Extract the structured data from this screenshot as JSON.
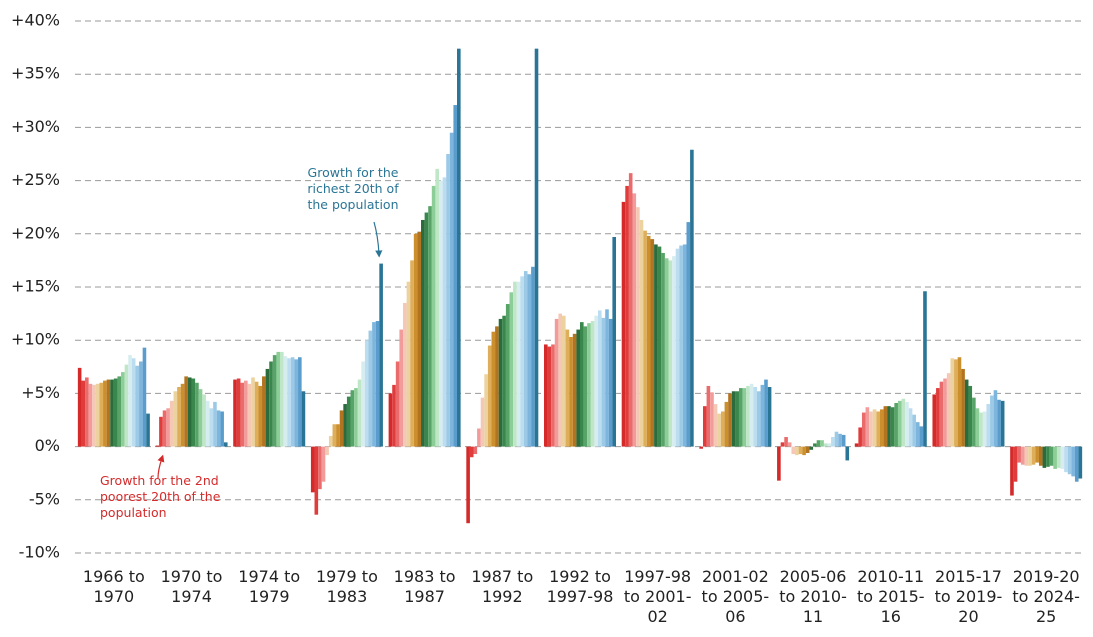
{
  "chart_data": {
    "type": "bar",
    "categories": [
      "1966 to 1970",
      "1970 to 1974",
      "1974 to 1979",
      "1979 to 1983",
      "1983 to 1987",
      "1987 to 1992",
      "1992 to 1997-98",
      "1997-98 to 2001-02",
      "2001-02 to 2005-06",
      "2005-06 to 2010-11",
      "2010-11 to 2015-16",
      "2015-17 to 2019-20",
      "2019-20 to 2024-25"
    ],
    "ylim": [
      -10,
      40
    ],
    "yticks": [
      {
        "value": -10,
        "label": "-10%"
      },
      {
        "value": -5,
        "label": "-5%"
      },
      {
        "value": 0,
        "label": "0%"
      },
      {
        "value": 5,
        "label": "+5%"
      },
      {
        "value": 10,
        "label": "+10%"
      },
      {
        "value": 15,
        "label": "+15%"
      },
      {
        "value": 20,
        "label": "+20%"
      },
      {
        "value": 25,
        "label": "+25%"
      },
      {
        "value": 30,
        "label": "+30%"
      },
      {
        "value": 35,
        "label": "+35%"
      },
      {
        "value": 40,
        "label": "+40%"
      }
    ],
    "grid": true,
    "annotations": [
      {
        "text": "Growth for the richest 20th of the population",
        "color": "#2a7595"
      },
      {
        "text": "Growth for the 2nd poorest 20th of the population",
        "color": "#d42a2a"
      }
    ],
    "series": [
      {
        "color": "#d42a2a",
        "values": [
          7.4,
          0.1,
          6.3,
          -4.3,
          5.0,
          -7.2,
          9.6,
          23.0,
          -0.2,
          -3.2,
          0.3,
          4.9,
          -4.6
        ]
      },
      {
        "color": "#e03c3c",
        "values": [
          6.2,
          2.8,
          6.4,
          -6.4,
          5.8,
          -1.0,
          9.4,
          24.5,
          3.8,
          0.4,
          1.8,
          5.5,
          -3.3
        ]
      },
      {
        "color": "#ea6b6b",
        "values": [
          6.5,
          3.4,
          6.0,
          -4.0,
          8.0,
          -0.7,
          9.6,
          25.7,
          5.7,
          0.9,
          3.2,
          6.1,
          -1.5
        ]
      },
      {
        "color": "#f29b9b",
        "values": [
          5.9,
          3.6,
          6.2,
          -3.3,
          11.0,
          1.7,
          12.0,
          23.8,
          5.1,
          0.4,
          3.7,
          6.4,
          -1.7
        ]
      },
      {
        "color": "#f5c8b6",
        "values": [
          5.8,
          4.3,
          5.9,
          -0.8,
          13.5,
          4.6,
          12.5,
          22.5,
          4.0,
          -0.7,
          3.3,
          6.9,
          -1.8
        ]
      },
      {
        "color": "#ecd29e",
        "values": [
          5.9,
          5.2,
          6.5,
          1.0,
          15.5,
          6.8,
          12.3,
          21.3,
          3.1,
          -0.8,
          3.5,
          8.3,
          -1.8
        ]
      },
      {
        "color": "#dfae5a",
        "values": [
          6.0,
          5.6,
          6.1,
          2.1,
          17.5,
          9.5,
          11.0,
          20.3,
          3.3,
          -0.7,
          3.3,
          8.2,
          -1.7
        ]
      },
      {
        "color": "#cc8f2e",
        "values": [
          6.2,
          5.9,
          5.7,
          2.1,
          20.0,
          10.8,
          10.3,
          19.8,
          4.2,
          -0.8,
          3.5,
          8.4,
          -1.5
        ]
      },
      {
        "color": "#b27420",
        "values": [
          6.3,
          6.6,
          6.6,
          3.4,
          20.2,
          11.3,
          10.6,
          19.5,
          5.0,
          -0.6,
          3.8,
          7.3,
          -1.8
        ]
      },
      {
        "color": "#2b6b3c",
        "values": [
          6.3,
          6.5,
          7.3,
          4.0,
          21.3,
          12.0,
          11.0,
          19.0,
          5.2,
          -0.3,
          3.8,
          6.3,
          -2.0
        ]
      },
      {
        "color": "#3a874e",
        "values": [
          6.4,
          6.4,
          8.0,
          4.7,
          22.0,
          12.3,
          11.7,
          18.8,
          5.2,
          0.3,
          3.7,
          5.7,
          -1.9
        ]
      },
      {
        "color": "#58a468",
        "values": [
          6.6,
          6.0,
          8.6,
          5.3,
          22.6,
          13.4,
          11.3,
          18.2,
          5.5,
          0.6,
          4.1,
          4.6,
          -1.8
        ]
      },
      {
        "color": "#8ccd98",
        "values": [
          7.0,
          5.4,
          8.9,
          5.5,
          24.5,
          14.5,
          11.6,
          17.7,
          5.5,
          0.6,
          4.3,
          3.6,
          -2.1
        ]
      },
      {
        "color": "#bfe6c7",
        "values": [
          7.7,
          4.9,
          8.9,
          6.3,
          26.1,
          15.5,
          11.8,
          17.5,
          5.7,
          0.3,
          4.5,
          3.2,
          -2.0
        ]
      },
      {
        "color": "#d6edf0",
        "values": [
          8.6,
          4.3,
          8.5,
          8.0,
          25.0,
          15.5,
          12.3,
          17.9,
          5.9,
          0.3,
          4.2,
          3.3,
          -2.1
        ]
      },
      {
        "color": "#bcdcef",
        "values": [
          8.3,
          3.6,
          8.3,
          10.0,
          25.3,
          16.0,
          12.8,
          18.6,
          5.6,
          0.9,
          3.6,
          4.0,
          -2.4
        ]
      },
      {
        "color": "#9ccae6",
        "values": [
          7.6,
          4.2,
          8.4,
          10.9,
          27.5,
          16.5,
          12.1,
          18.9,
          5.2,
          1.4,
          3.0,
          4.8,
          -2.6
        ]
      },
      {
        "color": "#7db5dd",
        "values": [
          8.0,
          3.4,
          8.2,
          11.7,
          29.5,
          16.2,
          12.9,
          19.0,
          5.8,
          1.2,
          2.3,
          5.3,
          -2.8
        ]
      },
      {
        "color": "#5a9dcd",
        "values": [
          9.3,
          3.3,
          8.4,
          11.8,
          32.1,
          16.9,
          12.0,
          21.1,
          6.3,
          1.1,
          1.9,
          4.4,
          -3.3
        ]
      },
      {
        "color": "#2a7595",
        "values": [
          3.1,
          0.4,
          5.2,
          17.2,
          37.4,
          37.4,
          19.7,
          27.9,
          5.6,
          -1.3,
          14.6,
          4.3,
          -3.0
        ]
      }
    ]
  }
}
